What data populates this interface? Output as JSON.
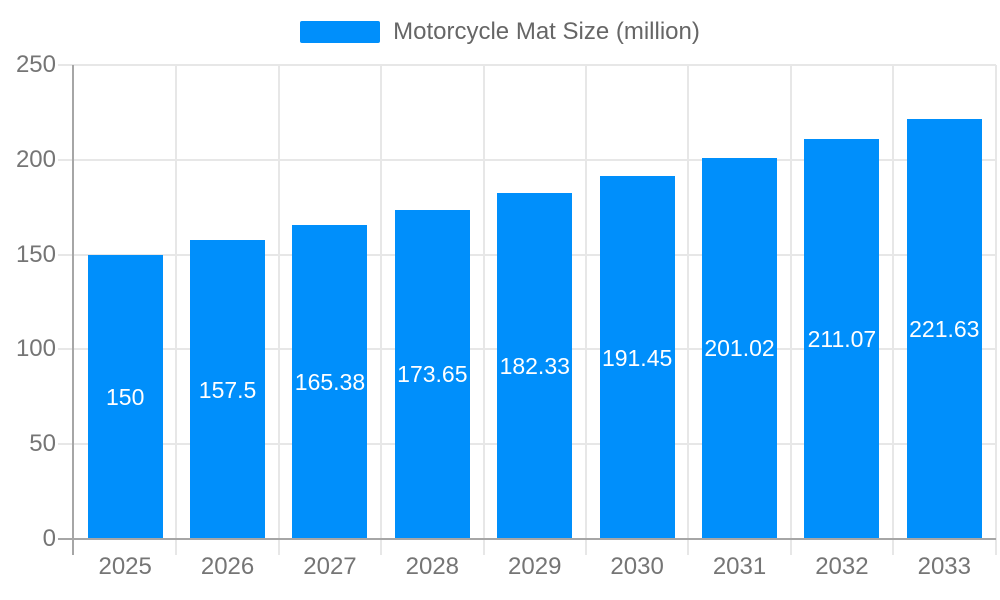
{
  "chart_data": {
    "type": "bar",
    "title": "Motorcycle Mat Size (million)",
    "categories": [
      "2025",
      "2026",
      "2027",
      "2028",
      "2029",
      "2030",
      "2031",
      "2032",
      "2033"
    ],
    "values": [
      150,
      157.5,
      165.38,
      173.65,
      182.33,
      191.45,
      201.02,
      211.07,
      221.63
    ],
    "value_labels": [
      "150",
      "157.5",
      "165.38",
      "173.65",
      "182.33",
      "191.45",
      "201.02",
      "211.07",
      "221.63"
    ],
    "xlabel": "",
    "ylabel": "",
    "ylim": [
      0,
      250
    ],
    "y_ticks": [
      0,
      50,
      100,
      150,
      200,
      250
    ],
    "y_tick_labels": [
      "0",
      "50",
      "100",
      "150",
      "200",
      "250"
    ],
    "grid": true,
    "legend_position": "top",
    "colors": {
      "bar": "#008FFB",
      "grid": "#e7e7e7",
      "axis": "#a6a6a6",
      "tick_text": "#757575",
      "legend_text": "#666666",
      "value_label": "#ffffff",
      "background": "#ffffff"
    }
  }
}
